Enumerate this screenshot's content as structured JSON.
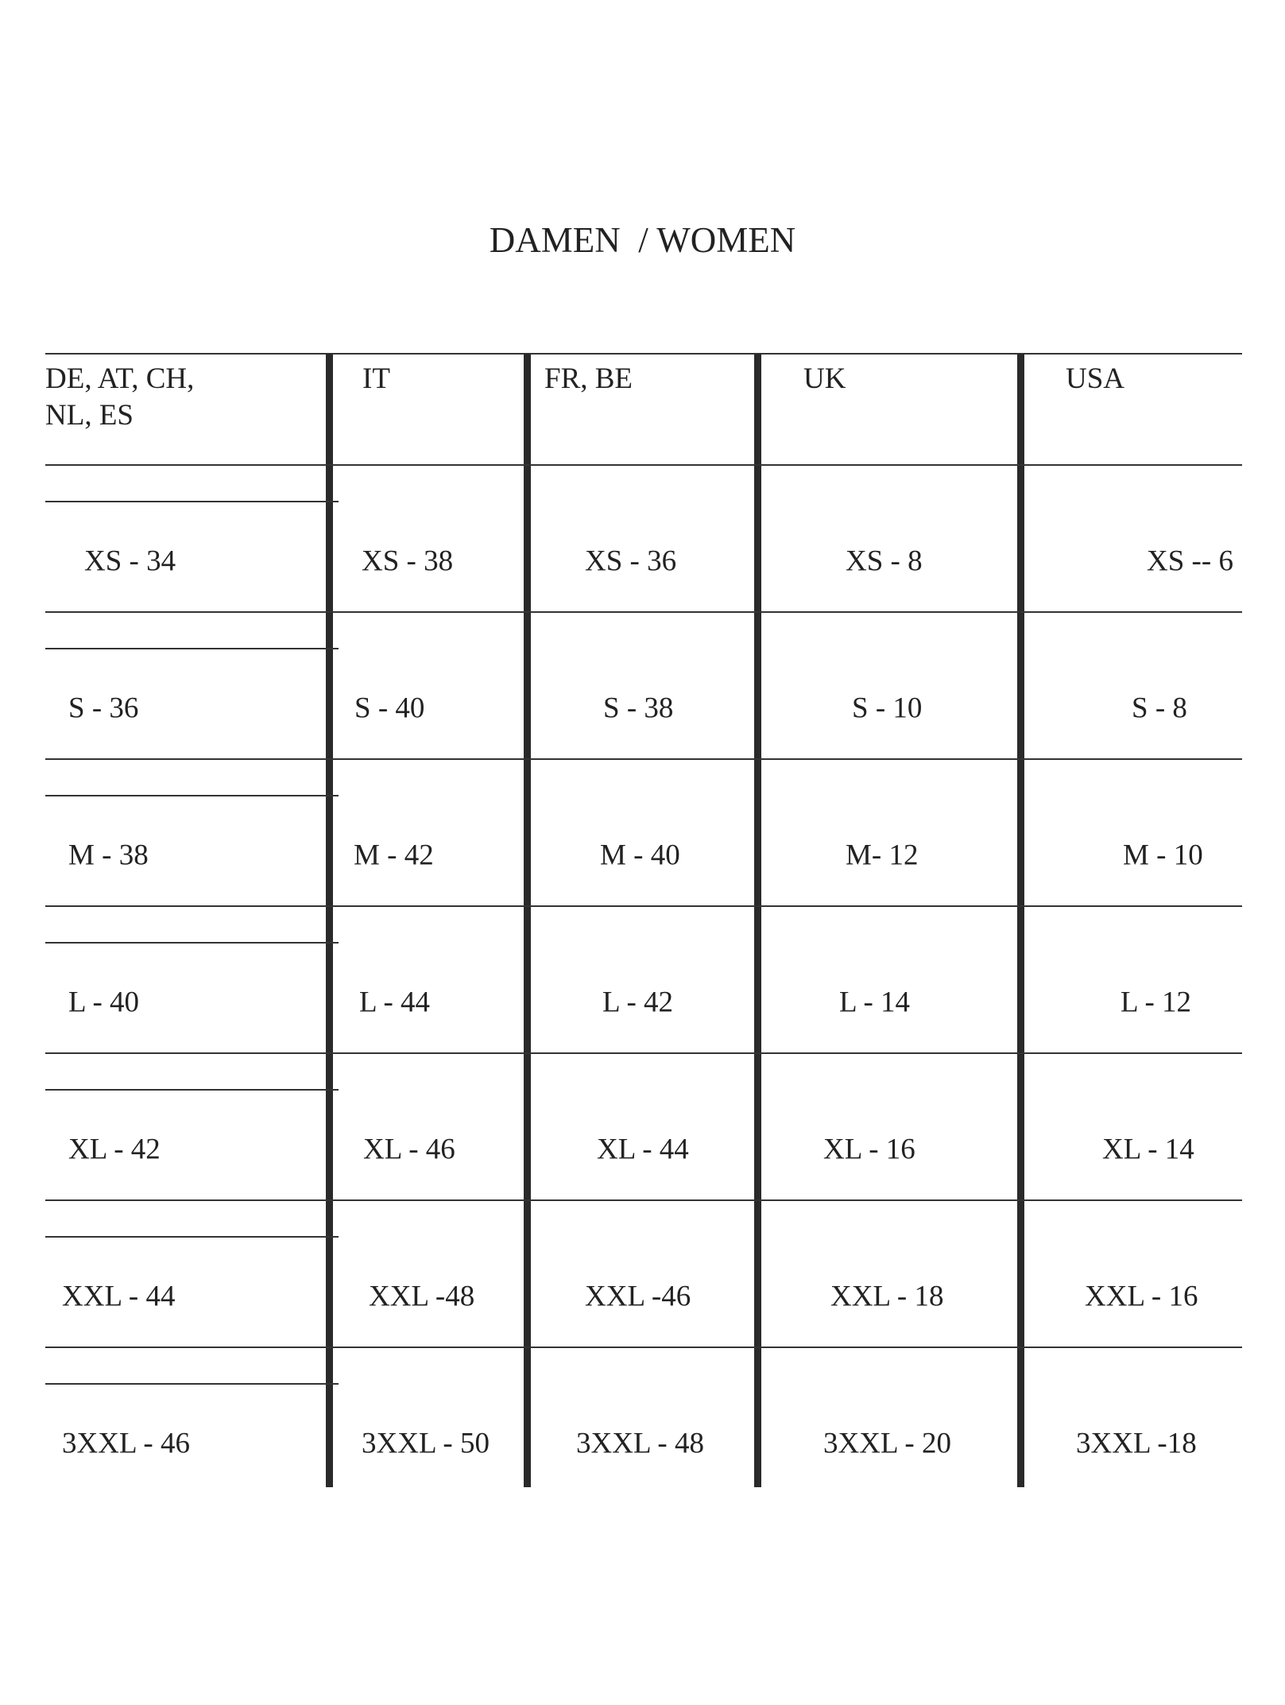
{
  "title": "DAMEN  / WOMEN",
  "table": {
    "headers": [
      "DE, AT, CH,\nNL, ES",
      "IT",
      "FR, BE",
      "UK",
      "USA"
    ],
    "rows": [
      [
        "XS - 34",
        "XS - 38",
        "XS - 36",
        "XS - 8",
        "XS -- 6"
      ],
      [
        "S - 36",
        "S - 40",
        "S - 38",
        "S - 10",
        "S - 8"
      ],
      [
        "M - 38",
        "M - 42",
        "M - 40",
        "M- 12",
        "M - 10"
      ],
      [
        "L - 40",
        "L - 44",
        "L - 42",
        "L - 14",
        "L - 12"
      ],
      [
        "XL - 42",
        "XL - 46",
        "XL - 44",
        "XL - 16",
        "XL - 14"
      ],
      [
        "XXL - 44",
        "XXL -48",
        "XXL -46",
        "XXL - 18",
        "XXL - 16"
      ],
      [
        "3XXL - 46",
        "3XXL - 50",
        "3XXL - 48",
        "3XXL - 20",
        "3XXL -18"
      ]
    ]
  }
}
